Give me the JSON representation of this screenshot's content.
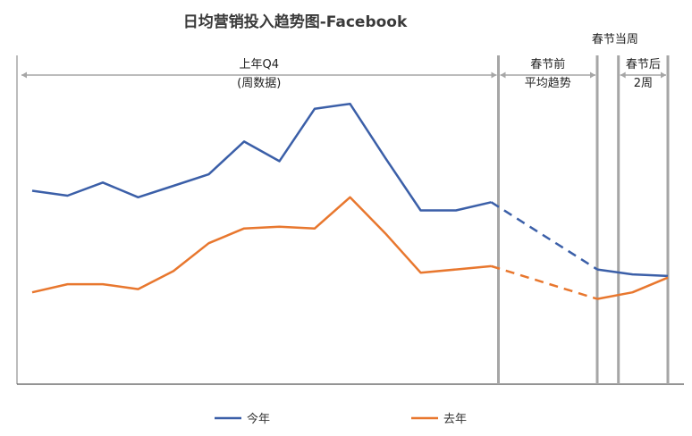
{
  "chart_data": {
    "type": "line",
    "title": "日均营销投入趋势图-Facebook",
    "xlabel": "",
    "ylabel": "",
    "x": [
      "1",
      "2",
      "3",
      "4",
      "5",
      "6",
      "7",
      "8",
      "9",
      "10",
      "11",
      "12",
      "13",
      "14",
      "15",
      "16",
      "17",
      "18",
      "19"
    ],
    "ylim": [
      0,
      100
    ],
    "grid": false,
    "legend_position": "bottom",
    "series": [
      {
        "name": "今年",
        "color": "#3b5fa8",
        "values": [
          59,
          57.5,
          61.5,
          57,
          60.5,
          64,
          74,
          68,
          84,
          85.5,
          69,
          53,
          53,
          55.5,
          null,
          null,
          35,
          33.5,
          33
        ]
      },
      {
        "name": "去年",
        "color": "#e8772e",
        "values": [
          28,
          30.5,
          30.5,
          29,
          34.5,
          43,
          47.5,
          48,
          47.5,
          57,
          46,
          34,
          35,
          36,
          null,
          null,
          26,
          28,
          32.5
        ]
      }
    ],
    "dashed_segments": [
      {
        "series": "今年",
        "x": [
          "14",
          "17"
        ]
      },
      {
        "series": "去年",
        "x": [
          "14",
          "17"
        ]
      }
    ],
    "regions": [
      {
        "label_lines": [
          "上年Q4",
          "(周数据)"
        ],
        "x_from": "1",
        "x_to": "14"
      },
      {
        "label_lines": [
          "春节前",
          "平均趋势"
        ],
        "x_from": "14",
        "x_to": "17"
      },
      {
        "label_lines": [
          "春节当周"
        ],
        "x_from": "17",
        "x_to": "17.6"
      },
      {
        "label_lines": [
          "春节后",
          "2周"
        ],
        "x_from": "17.6",
        "x_to": "19"
      }
    ]
  }
}
